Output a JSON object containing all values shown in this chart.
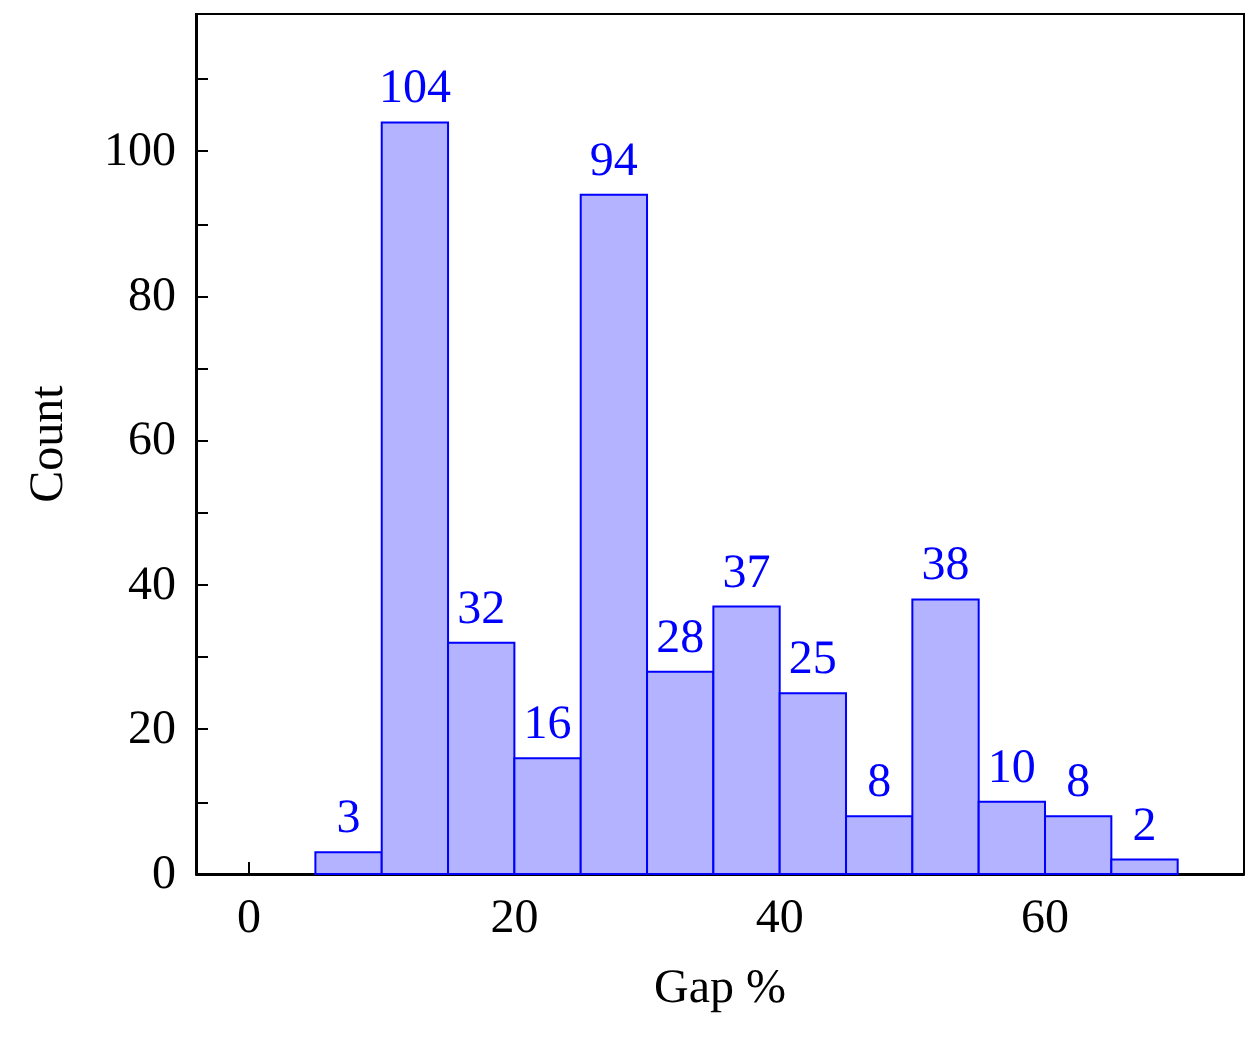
{
  "chart_data": {
    "type": "histogram",
    "xlabel": "Gap %",
    "ylabel": "Count",
    "bins": [
      5,
      10,
      15,
      20,
      25,
      30,
      35,
      40,
      45,
      50,
      55,
      60,
      65,
      70
    ],
    "values": [
      3,
      104,
      32,
      16,
      94,
      28,
      37,
      25,
      8,
      38,
      10,
      8,
      2
    ],
    "color": "#b3b3ff",
    "data_labels": true,
    "grid": false,
    "xlim": [
      -4,
      75
    ],
    "xticks": [
      0,
      20,
      40,
      60
    ],
    "ylim": [
      0,
      119
    ],
    "yticks": [
      0,
      {
        "value": 10,
        "label": null
      },
      20,
      {
        "value": 30,
        "label": null
      },
      40,
      {
        "value": 50,
        "label": null
      },
      60,
      {
        "value": 70,
        "label": null
      },
      80,
      {
        "value": 90,
        "label": null
      },
      100,
      {
        "value": 110,
        "label": null
      }
    ]
  }
}
